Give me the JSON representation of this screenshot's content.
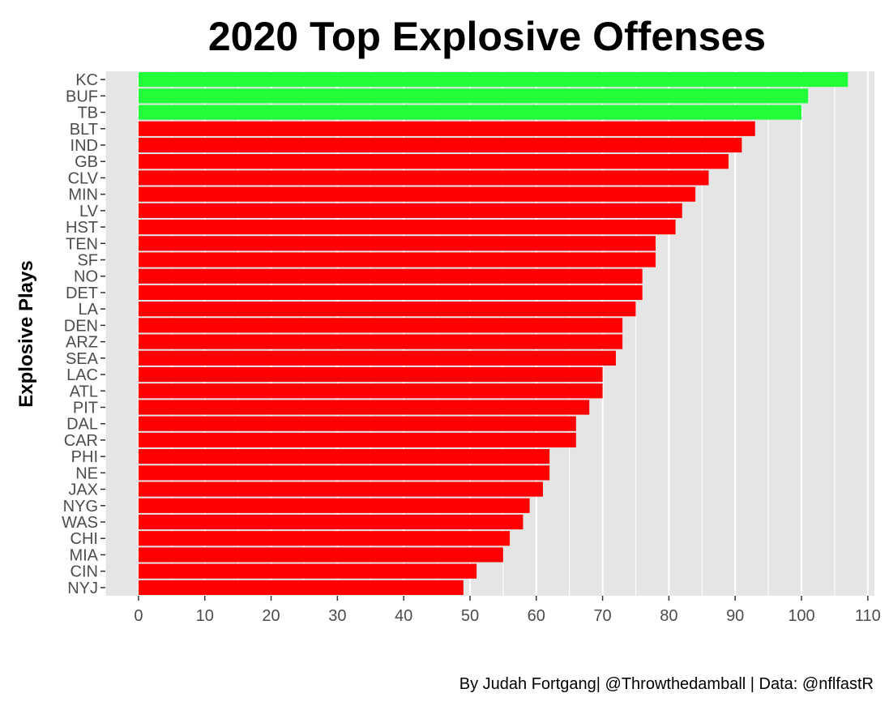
{
  "chart_data": {
    "type": "bar",
    "orientation": "horizontal",
    "title": "2020 Top Explosive Offenses",
    "xlabel": "",
    "ylabel": "Explosive Plays",
    "caption": "By Judah Fortgang| @Throwthedamball | Data: @nflfastR",
    "categories": [
      "KC",
      "BUF",
      "TB",
      "BLT",
      "IND",
      "GB",
      "CLV",
      "MIN",
      "LV",
      "HST",
      "TEN",
      "SF",
      "NO",
      "DET",
      "LA",
      "DEN",
      "ARZ",
      "SEA",
      "LAC",
      "ATL",
      "PIT",
      "DAL",
      "CAR",
      "PHI",
      "NE",
      "JAX",
      "NYG",
      "WAS",
      "CHI",
      "MIA",
      "CIN",
      "NYJ"
    ],
    "values": [
      107,
      101,
      100,
      93,
      91,
      89,
      86,
      84,
      82,
      81,
      78,
      78,
      76,
      76,
      75,
      73,
      73,
      72,
      70,
      70,
      68,
      66,
      66,
      62,
      62,
      61,
      59,
      58,
      56,
      55,
      51,
      49
    ],
    "xlim": [
      -5,
      111
    ],
    "xticks": [
      0,
      10,
      20,
      30,
      40,
      50,
      60,
      70,
      80,
      90,
      100,
      110
    ],
    "grid": true,
    "colors": {
      "top3": "#22ff3a",
      "rest": "#ff0000",
      "panel": "#e5e5e5",
      "grid": "#ffffff"
    }
  }
}
